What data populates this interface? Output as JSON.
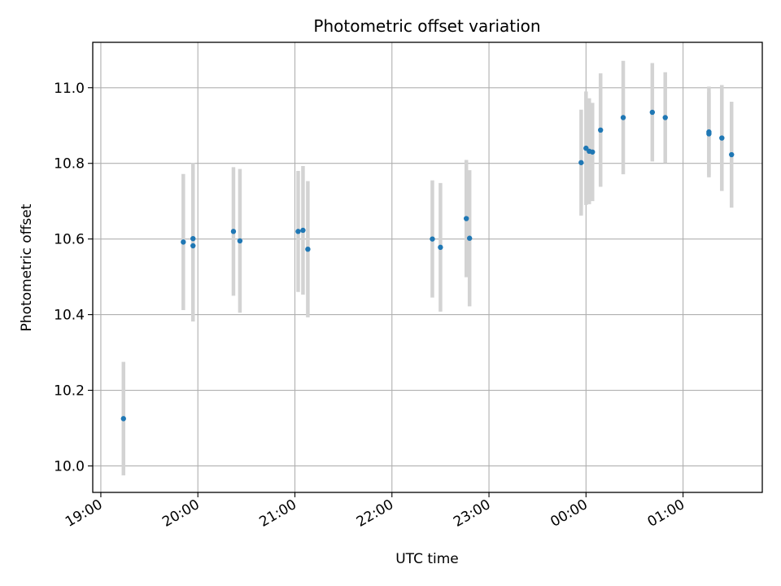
{
  "chart_data": {
    "type": "scatter",
    "title": "Photometric offset variation",
    "xlabel": "UTC time",
    "ylabel": "Photometric offset",
    "x_unit": "UTC",
    "x_tick_labels": [
      "19:00",
      "20:00",
      "21:00",
      "22:00",
      "23:00",
      "00:00",
      "01:00"
    ],
    "y_ticks": [
      10.0,
      10.2,
      10.4,
      10.6,
      10.8,
      11.0
    ],
    "y_tick_labels": [
      "10.0",
      "10.2",
      "10.4",
      "10.6",
      "10.8",
      "11.0"
    ],
    "ylim": [
      9.93,
      11.12
    ],
    "grid": true,
    "series": [
      {
        "marker_color": "#1f77b4",
        "errorbar_color": "#d3d3d3",
        "points": [
          {
            "x": "19:14",
            "y": 10.125,
            "yerr": 0.15
          },
          {
            "x": "19:51",
            "y": 10.592,
            "yerr": 0.18
          },
          {
            "x": "19:57",
            "y": 10.601,
            "yerr": 0.2
          },
          {
            "x": "19:57",
            "y": 10.582,
            "yerr": 0.2
          },
          {
            "x": "20:22",
            "y": 10.62,
            "yerr": 0.17
          },
          {
            "x": "20:26",
            "y": 10.595,
            "yerr": 0.19
          },
          {
            "x": "21:02",
            "y": 10.62,
            "yerr": 0.16
          },
          {
            "x": "21:05",
            "y": 10.623,
            "yerr": 0.17
          },
          {
            "x": "21:08",
            "y": 10.573,
            "yerr": 0.18
          },
          {
            "x": "22:25",
            "y": 10.6,
            "yerr": 0.155
          },
          {
            "x": "22:30",
            "y": 10.578,
            "yerr": 0.17
          },
          {
            "x": "22:46",
            "y": 10.654,
            "yerr": 0.155
          },
          {
            "x": "22:48",
            "y": 10.602,
            "yerr": 0.18
          },
          {
            "x": "23:57",
            "y": 10.802,
            "yerr": 0.14
          },
          {
            "x": "00:00",
            "y": 10.84,
            "yerr": 0.15
          },
          {
            "x": "00:02",
            "y": 10.832,
            "yerr": 0.14
          },
          {
            "x": "00:04",
            "y": 10.83,
            "yerr": 0.13
          },
          {
            "x": "00:09",
            "y": 10.888,
            "yerr": 0.15
          },
          {
            "x": "00:23",
            "y": 10.921,
            "yerr": 0.15
          },
          {
            "x": "00:41",
            "y": 10.935,
            "yerr": 0.13
          },
          {
            "x": "00:49",
            "y": 10.921,
            "yerr": 0.12
          },
          {
            "x": "01:16",
            "y": 10.883,
            "yerr": 0.12
          },
          {
            "x": "01:16",
            "y": 10.878,
            "yerr": 0.11
          },
          {
            "x": "01:24",
            "y": 10.867,
            "yerr": 0.14
          },
          {
            "x": "01:30",
            "y": 10.823,
            "yerr": 0.14
          }
        ]
      }
    ]
  }
}
